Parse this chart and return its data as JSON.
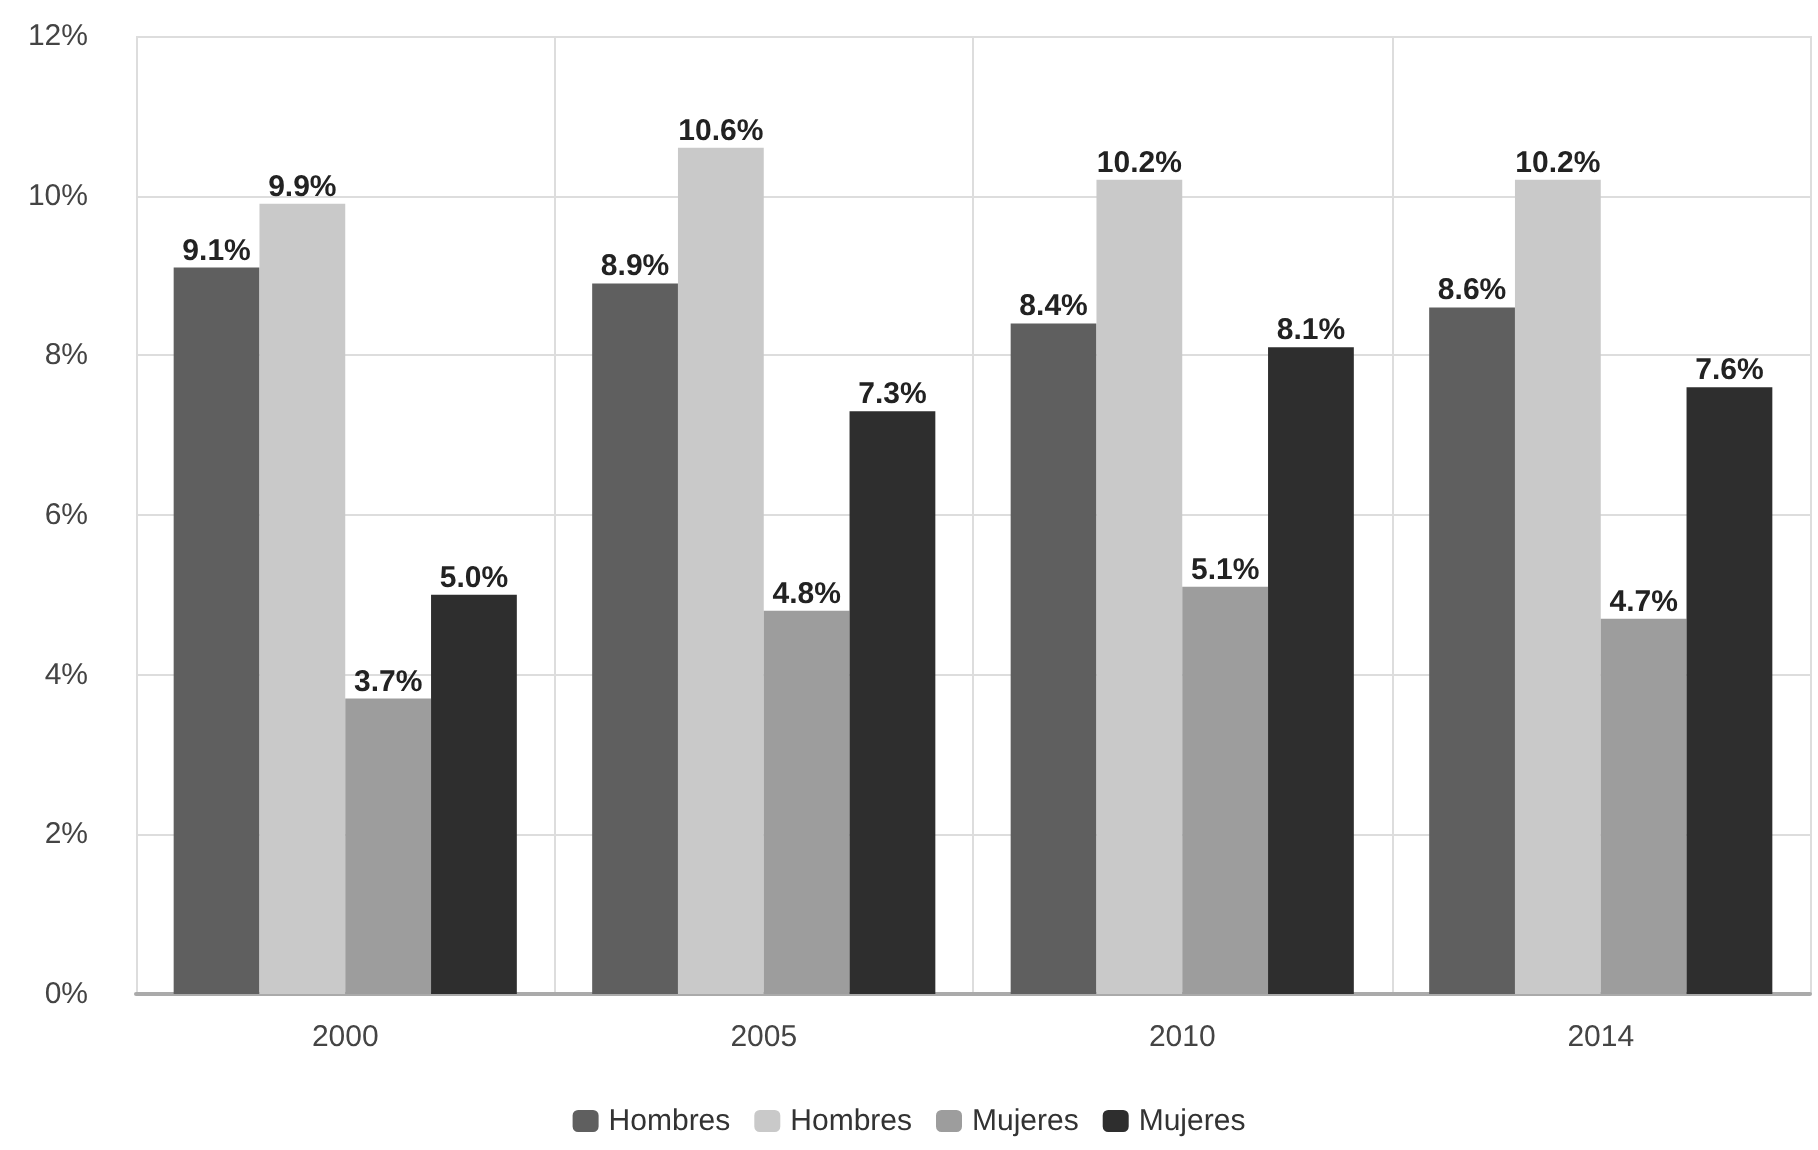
{
  "chart_data": {
    "type": "bar",
    "categories": [
      "2000",
      "2005",
      "2010",
      "2014"
    ],
    "series": [
      {
        "name": "Hombres",
        "color": "#5f5f5f",
        "values": [
          9.1,
          8.9,
          8.4,
          8.6
        ],
        "value_labels": [
          "9.1%",
          "8.9%",
          "8.4%",
          "8.6%"
        ]
      },
      {
        "name": "Hombres",
        "color": "#c9c9c9",
        "values": [
          9.9,
          10.6,
          10.2,
          10.2
        ],
        "value_labels": [
          "9.9%",
          "10.6%",
          "10.2%",
          "10.2%"
        ]
      },
      {
        "name": "Mujeres",
        "color": "#9d9d9d",
        "values": [
          3.7,
          4.8,
          5.1,
          4.7
        ],
        "value_labels": [
          "3.7%",
          "4.8%",
          "5.1%",
          "4.7%"
        ]
      },
      {
        "name": "Mujeres",
        "color": "#2e2e2e",
        "values": [
          5.0,
          7.3,
          8.1,
          7.6
        ],
        "value_labels": [
          "5.0%",
          "7.3%",
          "8.1%",
          "7.6%"
        ]
      }
    ],
    "ylim": [
      0,
      12
    ],
    "yticks": [
      {
        "value": 0,
        "label": "0%"
      },
      {
        "value": 2,
        "label": "2%"
      },
      {
        "value": 4,
        "label": "4%"
      },
      {
        "value": 6,
        "label": "6%"
      },
      {
        "value": 8,
        "label": "8%"
      },
      {
        "value": 10,
        "label": "10%"
      },
      {
        "value": 12,
        "label": "12%"
      }
    ],
    "grid": true,
    "legend": "bottom"
  }
}
